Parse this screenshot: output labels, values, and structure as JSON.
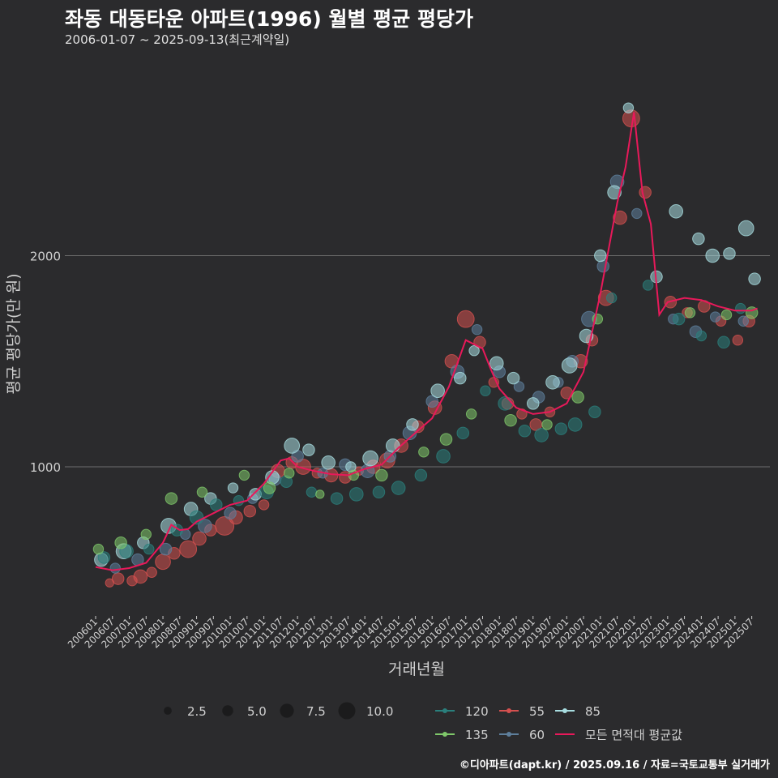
{
  "header": {
    "title": "좌동 대동타운 아파트(1996) 월별 평균 평당가",
    "subtitle": "2006-01-07 ~ 2025-09-13(최근계약일)"
  },
  "footer": {
    "credit": "©디아파트(dapt.kr) / 2025.09.16 / 자료=국토교통부 실거래가"
  },
  "colors": {
    "background": "#2b2b2d",
    "grid": "#6e6e6e",
    "s120": "#2a7f7c",
    "s55": "#d4504f",
    "s85": "#a8dde0",
    "s135": "#7fc86a",
    "s60": "#5e7f9c",
    "avg": "#e8195a"
  },
  "chart_data": {
    "type": "scatter",
    "title": "좌동 대동타운 아파트(1996) 월별 평균 평당가",
    "xlabel": "거래년월",
    "ylabel": "평균 평당가(만 원)",
    "yticks": [
      1000,
      2000
    ],
    "ylim": [
      300,
      2900
    ],
    "xlim": [
      "2006-01",
      "2025-09"
    ],
    "x_tick_labels": [
      "200601",
      "200607",
      "200701",
      "200707",
      "200801",
      "200807",
      "200901",
      "200907",
      "201001",
      "201007",
      "201101",
      "201107",
      "201201",
      "201207",
      "201301",
      "201307",
      "201401",
      "201407",
      "201501",
      "201507",
      "201601",
      "201607",
      "201701",
      "201707",
      "201801",
      "201807",
      "201901",
      "201907",
      "202001",
      "202007",
      "202101",
      "202107",
      "202201",
      "202207",
      "202301",
      "202307",
      "202401",
      "202407",
      "202501",
      "202507"
    ],
    "size_legend": {
      "values": [
        2.5,
        5.0,
        7.5,
        10.0
      ],
      "labels": [
        "2.5",
        "5.0",
        "7.5",
        "10.0"
      ]
    },
    "legend_labels": {
      "s120": "120",
      "s55": "55",
      "s85": "85",
      "s135": "135",
      "s60": "60",
      "avg": "모든 면적대 평균값"
    },
    "average_line": {
      "name": "모든 면적대 평균값",
      "points": [
        [
          "2006-01",
          525
        ],
        [
          "2006-07",
          510
        ],
        [
          "2007-01",
          520
        ],
        [
          "2007-07",
          545
        ],
        [
          "2008-01",
          640
        ],
        [
          "2008-04",
          725
        ],
        [
          "2008-07",
          700
        ],
        [
          "2008-10",
          705
        ],
        [
          "2009-01",
          740
        ],
        [
          "2009-07",
          780
        ],
        [
          "2010-01",
          820
        ],
        [
          "2010-07",
          840
        ],
        [
          "2011-01",
          920
        ],
        [
          "2011-07",
          1030
        ],
        [
          "2011-10",
          1040
        ],
        [
          "2012-01",
          1000
        ],
        [
          "2012-07",
          980
        ],
        [
          "2013-01",
          965
        ],
        [
          "2013-07",
          960
        ],
        [
          "2014-01",
          990
        ],
        [
          "2014-07",
          1010
        ],
        [
          "2015-01",
          1090
        ],
        [
          "2015-07",
          1160
        ],
        [
          "2016-01",
          1230
        ],
        [
          "2016-07",
          1380
        ],
        [
          "2017-01",
          1600
        ],
        [
          "2017-07",
          1560
        ],
        [
          "2017-10",
          1460
        ],
        [
          "2018-01",
          1370
        ],
        [
          "2018-07",
          1280
        ],
        [
          "2019-01",
          1250
        ],
        [
          "2019-07",
          1260
        ],
        [
          "2020-01",
          1300
        ],
        [
          "2020-07",
          1450
        ],
        [
          "2021-01",
          1820
        ],
        [
          "2021-07",
          2250
        ],
        [
          "2021-10",
          2420
        ],
        [
          "2022-01",
          2680
        ],
        [
          "2022-04",
          2300
        ],
        [
          "2022-07",
          2150
        ],
        [
          "2022-10",
          1720
        ],
        [
          "2023-01",
          1780
        ],
        [
          "2023-07",
          1800
        ],
        [
          "2024-01",
          1790
        ],
        [
          "2024-07",
          1760
        ],
        [
          "2025-01",
          1740
        ],
        [
          "2025-07",
          1740
        ],
        [
          "2025-09",
          1750
        ]
      ]
    },
    "series": [
      {
        "name": "55",
        "color_key": "s55",
        "points": [
          [
            "2006-06",
            450,
            3
          ],
          [
            "2006-09",
            470,
            5
          ],
          [
            "2007-02",
            460,
            4
          ],
          [
            "2007-05",
            480,
            6
          ],
          [
            "2007-09",
            500,
            4
          ],
          [
            "2008-01",
            550,
            7
          ],
          [
            "2008-05",
            590,
            5
          ],
          [
            "2008-10",
            610,
            8
          ],
          [
            "2009-02",
            660,
            6
          ],
          [
            "2009-06",
            700,
            5
          ],
          [
            "2009-11",
            720,
            9
          ],
          [
            "2010-03",
            760,
            6
          ],
          [
            "2010-08",
            790,
            5
          ],
          [
            "2011-01",
            820,
            4
          ],
          [
            "2011-06",
            980,
            6
          ],
          [
            "2011-11",
            1020,
            5
          ],
          [
            "2012-03",
            1000,
            7
          ],
          [
            "2012-08",
            970,
            4
          ],
          [
            "2013-01",
            960,
            6
          ],
          [
            "2013-06",
            950,
            5
          ],
          [
            "2013-11",
            980,
            3
          ],
          [
            "2014-04",
            1000,
            6
          ],
          [
            "2014-09",
            1030,
            7
          ],
          [
            "2015-02",
            1100,
            6
          ],
          [
            "2015-08",
            1190,
            5
          ],
          [
            "2016-02",
            1280,
            6
          ],
          [
            "2016-08",
            1500,
            6
          ],
          [
            "2017-01",
            1700,
            8
          ],
          [
            "2017-06",
            1590,
            5
          ],
          [
            "2017-11",
            1400,
            4
          ],
          [
            "2018-04",
            1300,
            5
          ],
          [
            "2018-09",
            1250,
            4
          ],
          [
            "2019-02",
            1200,
            5
          ],
          [
            "2019-07",
            1260,
            4
          ],
          [
            "2020-01",
            1350,
            5
          ],
          [
            "2020-06",
            1500,
            6
          ],
          [
            "2020-10",
            1600,
            5
          ],
          [
            "2021-03",
            1800,
            7
          ],
          [
            "2021-08",
            2180,
            6
          ],
          [
            "2021-12",
            2650,
            8
          ],
          [
            "2022-05",
            2300,
            5
          ],
          [
            "2023-02",
            1780,
            5
          ],
          [
            "2023-08",
            1730,
            4
          ],
          [
            "2024-02",
            1760,
            5
          ],
          [
            "2024-08",
            1690,
            4
          ],
          [
            "2025-02",
            1600,
            4
          ],
          [
            "2025-06",
            1690,
            5
          ]
        ]
      },
      {
        "name": "60",
        "color_key": "s60",
        "points": [
          [
            "2006-08",
            520,
            4
          ],
          [
            "2007-04",
            560,
            5
          ],
          [
            "2008-02",
            610,
            5
          ],
          [
            "2008-09",
            680,
            4
          ],
          [
            "2009-04",
            720,
            6
          ],
          [
            "2010-01",
            780,
            5
          ],
          [
            "2010-09",
            850,
            4
          ],
          [
            "2011-05",
            940,
            5
          ],
          [
            "2012-01",
            1050,
            5
          ],
          [
            "2012-10",
            970,
            4
          ],
          [
            "2013-06",
            1010,
            5
          ],
          [
            "2014-02",
            980,
            6
          ],
          [
            "2014-10",
            1050,
            5
          ],
          [
            "2015-05",
            1160,
            6
          ],
          [
            "2016-01",
            1310,
            5
          ],
          [
            "2016-10",
            1450,
            6
          ],
          [
            "2017-05",
            1650,
            4
          ],
          [
            "2018-01",
            1450,
            5
          ],
          [
            "2018-08",
            1380,
            4
          ],
          [
            "2019-03",
            1330,
            5
          ],
          [
            "2019-10",
            1400,
            4
          ],
          [
            "2020-03",
            1500,
            5
          ],
          [
            "2020-09",
            1700,
            7
          ],
          [
            "2021-02",
            1950,
            5
          ],
          [
            "2021-07",
            2350,
            6
          ],
          [
            "2022-02",
            2200,
            4
          ],
          [
            "2023-03",
            1700,
            4
          ],
          [
            "2023-11",
            1640,
            5
          ],
          [
            "2024-06",
            1710,
            4
          ],
          [
            "2025-04",
            1690,
            4
          ]
        ]
      },
      {
        "name": "85",
        "color_key": "s85",
        "points": [
          [
            "2006-03",
            560,
            6
          ],
          [
            "2006-11",
            600,
            7
          ],
          [
            "2007-06",
            640,
            5
          ],
          [
            "2008-03",
            720,
            7
          ],
          [
            "2008-11",
            800,
            6
          ],
          [
            "2009-06",
            850,
            5
          ],
          [
            "2010-02",
            900,
            4
          ],
          [
            "2010-10",
            870,
            5
          ],
          [
            "2011-04",
            950,
            6
          ],
          [
            "2011-11",
            1100,
            7
          ],
          [
            "2012-05",
            1080,
            5
          ],
          [
            "2012-12",
            1020,
            6
          ],
          [
            "2013-08",
            1000,
            4
          ],
          [
            "2014-03",
            1040,
            7
          ],
          [
            "2014-11",
            1100,
            6
          ],
          [
            "2015-06",
            1200,
            5
          ],
          [
            "2016-03",
            1360,
            6
          ],
          [
            "2016-11",
            1420,
            5
          ],
          [
            "2017-04",
            1550,
            4
          ],
          [
            "2017-12",
            1490,
            6
          ],
          [
            "2018-06",
            1420,
            5
          ],
          [
            "2019-01",
            1300,
            5
          ],
          [
            "2019-08",
            1400,
            6
          ],
          [
            "2020-02",
            1480,
            7
          ],
          [
            "2020-08",
            1620,
            6
          ],
          [
            "2021-01",
            2000,
            5
          ],
          [
            "2021-06",
            2300,
            6
          ],
          [
            "2021-11",
            2700,
            4
          ],
          [
            "2022-09",
            1900,
            5
          ],
          [
            "2023-04",
            2210,
            6
          ],
          [
            "2023-12",
            2080,
            5
          ],
          [
            "2024-05",
            2000,
            6
          ],
          [
            "2024-11",
            2010,
            5
          ],
          [
            "2025-05",
            2130,
            7
          ],
          [
            "2025-08",
            1890,
            5
          ]
        ]
      },
      {
        "name": "120",
        "color_key": "s120",
        "points": [
          [
            "2006-04",
            570,
            5
          ],
          [
            "2006-12",
            600,
            6
          ],
          [
            "2007-08",
            610,
            4
          ],
          [
            "2008-06",
            700,
            5
          ],
          [
            "2009-01",
            760,
            6
          ],
          [
            "2009-08",
            820,
            5
          ],
          [
            "2010-04",
            840,
            4
          ],
          [
            "2011-02",
            880,
            6
          ],
          [
            "2011-09",
            930,
            5
          ],
          [
            "2012-06",
            880,
            4
          ],
          [
            "2013-03",
            850,
            5
          ],
          [
            "2013-10",
            870,
            6
          ],
          [
            "2014-06",
            880,
            5
          ],
          [
            "2015-01",
            900,
            6
          ],
          [
            "2015-09",
            960,
            5
          ],
          [
            "2016-05",
            1050,
            6
          ],
          [
            "2016-12",
            1160,
            5
          ],
          [
            "2017-08",
            1360,
            4
          ],
          [
            "2018-03",
            1300,
            6
          ],
          [
            "2018-10",
            1170,
            5
          ],
          [
            "2019-04",
            1150,
            6
          ],
          [
            "2019-11",
            1180,
            5
          ],
          [
            "2020-04",
            1200,
            6
          ],
          [
            "2020-11",
            1260,
            5
          ],
          [
            "2021-05",
            1800,
            4
          ],
          [
            "2022-06",
            1860,
            4
          ],
          [
            "2023-05",
            1700,
            5
          ],
          [
            "2024-01",
            1620,
            4
          ],
          [
            "2024-09",
            1590,
            5
          ],
          [
            "2025-03",
            1750,
            4
          ]
        ]
      },
      {
        "name": "135",
        "color_key": "s135",
        "points": [
          [
            "2006-02",
            610,
            4
          ],
          [
            "2006-10",
            640,
            5
          ],
          [
            "2007-07",
            680,
            4
          ],
          [
            "2008-04",
            850,
            5
          ],
          [
            "2009-03",
            880,
            4
          ],
          [
            "2010-06",
            960,
            4
          ],
          [
            "2011-03",
            900,
            5
          ],
          [
            "2011-10",
            970,
            4
          ],
          [
            "2012-09",
            870,
            3
          ],
          [
            "2013-09",
            960,
            4
          ],
          [
            "2014-07",
            960,
            5
          ],
          [
            "2015-10",
            1070,
            4
          ],
          [
            "2016-06",
            1130,
            5
          ],
          [
            "2017-03",
            1250,
            4
          ],
          [
            "2018-05",
            1220,
            5
          ],
          [
            "2019-06",
            1200,
            4
          ],
          [
            "2020-05",
            1330,
            5
          ],
          [
            "2020-12",
            1700,
            4
          ],
          [
            "2023-09",
            1730,
            4
          ],
          [
            "2024-10",
            1720,
            4
          ],
          [
            "2025-07",
            1730,
            5
          ]
        ]
      }
    ]
  }
}
